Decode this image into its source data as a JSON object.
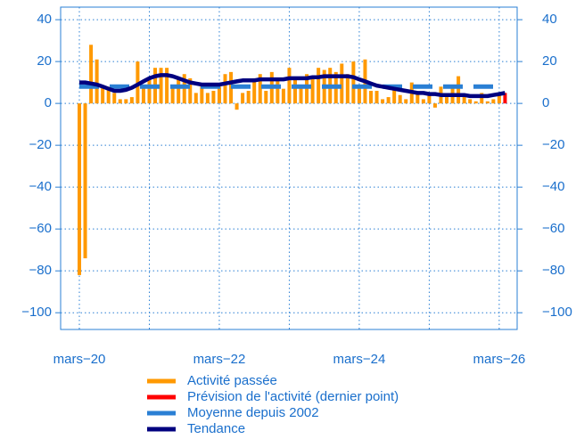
{
  "chart_data": {
    "type": "bar",
    "categories": [
      "mars−20",
      null,
      null,
      null,
      null,
      null,
      null,
      null,
      null,
      null,
      null,
      null,
      null,
      null,
      null,
      null,
      null,
      null,
      null,
      null,
      null,
      null,
      null,
      null,
      "mars−22",
      null,
      null,
      null,
      null,
      null,
      null,
      null,
      null,
      null,
      null,
      null,
      null,
      null,
      null,
      null,
      null,
      null,
      null,
      null,
      null,
      null,
      null,
      null,
      "mars−24",
      null,
      null,
      null,
      null,
      null,
      null,
      null,
      null,
      null,
      null,
      null,
      null,
      null,
      null,
      null,
      null,
      null,
      null,
      null,
      null,
      null,
      null,
      null,
      "mars−26",
      null
    ],
    "series": [
      {
        "name": "Activité passée",
        "color": "#ff9900",
        "kind": "bar",
        "values": [
          -82,
          -74,
          28,
          21,
          8,
          8,
          5,
          2,
          2,
          3,
          20,
          8,
          12,
          17,
          17,
          17,
          8,
          12,
          14,
          12,
          5,
          8,
          5,
          6,
          8,
          14,
          15,
          -3,
          5,
          6,
          12,
          14,
          6,
          15,
          12,
          7,
          17,
          12,
          9,
          14,
          13,
          17,
          16,
          17,
          15,
          19,
          14,
          20,
          8,
          21,
          6,
          6,
          2,
          3,
          9,
          4,
          2,
          10,
          5,
          2,
          5,
          -2,
          8,
          3,
          8,
          13,
          4,
          2,
          1,
          5,
          1,
          2,
          4,
          null
        ]
      },
      {
        "name": "Prévision de l'activité (dernier point)",
        "color": "#ff0000",
        "kind": "bar",
        "values": [
          null,
          null,
          null,
          null,
          null,
          null,
          null,
          null,
          null,
          null,
          null,
          null,
          null,
          null,
          null,
          null,
          null,
          null,
          null,
          null,
          null,
          null,
          null,
          null,
          null,
          null,
          null,
          null,
          null,
          null,
          null,
          null,
          null,
          null,
          null,
          null,
          null,
          null,
          null,
          null,
          null,
          null,
          null,
          null,
          null,
          null,
          null,
          null,
          null,
          null,
          null,
          null,
          null,
          null,
          null,
          null,
          null,
          null,
          null,
          null,
          null,
          null,
          null,
          null,
          null,
          null,
          null,
          null,
          null,
          null,
          null,
          null,
          null,
          5
        ]
      },
      {
        "name": "Moyenne depuis 2002",
        "color": "#2a7fd4",
        "kind": "dashed",
        "values": [
          8,
          8,
          8,
          8,
          8,
          8,
          8,
          8,
          8,
          8,
          8,
          8,
          8,
          8,
          8,
          8,
          8,
          8,
          8,
          8,
          8,
          8,
          8,
          8,
          8,
          8,
          8,
          8,
          8,
          8,
          8,
          8,
          8,
          8,
          8,
          8,
          8,
          8,
          8,
          8,
          8,
          8,
          8,
          8,
          8,
          8,
          8,
          8,
          8,
          8,
          8,
          8,
          8,
          8,
          8,
          8,
          8,
          8,
          8,
          8,
          8,
          8,
          8,
          8,
          8,
          8,
          8,
          8,
          8,
          8,
          8,
          8,
          8,
          null
        ]
      },
      {
        "name": "Tendance",
        "color": "#00007f",
        "kind": "line",
        "values": [
          10,
          10,
          9.5,
          9,
          8,
          7,
          6,
          6,
          6.5,
          7.5,
          9,
          10.5,
          12,
          13,
          13.5,
          13.5,
          13,
          12,
          11,
          10,
          9.5,
          9,
          9,
          9,
          9,
          9.5,
          10,
          10.5,
          11,
          11,
          11,
          11.5,
          11.5,
          11.5,
          11.5,
          11.5,
          12,
          12,
          12,
          12,
          12.5,
          12.5,
          13,
          13,
          13,
          13,
          13,
          12.5,
          11.5,
          10.5,
          9.5,
          8.5,
          8,
          7.5,
          7,
          6.5,
          6,
          5.5,
          5,
          5,
          4.5,
          4.5,
          4,
          4,
          4,
          4,
          4,
          3.5,
          3.5,
          3.5,
          3.5,
          4,
          4.5,
          5
        ]
      }
    ],
    "ylim": [
      -108,
      46
    ],
    "yticks": [
      {
        "value": -100,
        "label": "−100"
      },
      {
        "value": -80,
        "label": "−80"
      },
      {
        "value": -60,
        "label": "−60"
      },
      {
        "value": -40,
        "label": "−40"
      },
      {
        "value": -20,
        "label": "−20"
      },
      0,
      20,
      40
    ],
    "grid": true
  }
}
